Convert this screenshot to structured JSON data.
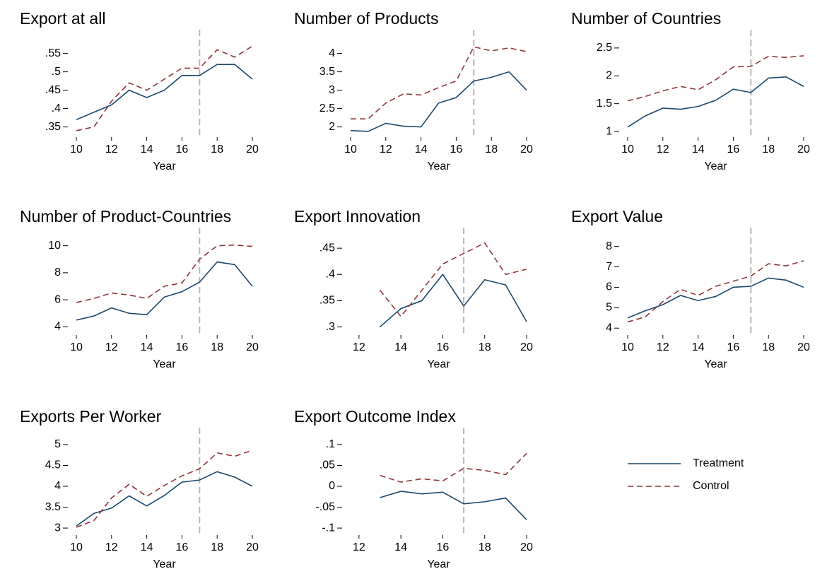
{
  "chart_data": [
    {
      "type": "line",
      "title": "Export at all",
      "xlabel": "Year",
      "x": [
        10,
        11,
        12,
        13,
        14,
        15,
        16,
        17,
        18,
        19,
        20
      ],
      "xlim": [
        10,
        20
      ],
      "xticks": [
        10,
        12,
        14,
        16,
        18,
        20
      ],
      "ylim": [
        0.33,
        0.58
      ],
      "yticks": [
        {
          "value": 0.35,
          "label": ".35"
        },
        {
          "value": 0.4,
          "label": ".4"
        },
        {
          "value": 0.45,
          "label": ".45"
        },
        {
          "value": 0.5,
          "label": ".5"
        },
        {
          "value": 0.55,
          "label": ".55"
        }
      ],
      "vline": 17,
      "series": [
        {
          "name": "Treatment",
          "color": "#1a476f",
          "dashed": false,
          "values": [
            0.37,
            0.39,
            0.41,
            0.45,
            0.43,
            0.45,
            0.49,
            0.49,
            0.52,
            0.52,
            0.48
          ]
        },
        {
          "name": "Control",
          "color": "#90353b",
          "dashed": true,
          "values": [
            0.34,
            0.35,
            0.42,
            0.47,
            0.45,
            0.48,
            0.51,
            0.51,
            0.56,
            0.54,
            0.57
          ]
        }
      ]
    },
    {
      "type": "line",
      "title": "Number of Products",
      "xlabel": "Year",
      "x": [
        10,
        11,
        12,
        13,
        14,
        15,
        16,
        17,
        18,
        19,
        20
      ],
      "xlim": [
        10,
        20
      ],
      "xticks": [
        10,
        12,
        14,
        16,
        18,
        20
      ],
      "ylim": [
        1.8,
        4.3
      ],
      "yticks": [
        2,
        2.5,
        3,
        3.5,
        4
      ],
      "vline": 17,
      "series": [
        {
          "name": "Treatment",
          "color": "#1a476f",
          "dashed": false,
          "values": [
            1.9,
            1.88,
            2.1,
            2.02,
            2.0,
            2.65,
            2.8,
            3.25,
            3.35,
            3.5,
            3.0
          ]
        },
        {
          "name": "Control",
          "color": "#90353b",
          "dashed": true,
          "values": [
            2.22,
            2.22,
            2.65,
            2.9,
            2.87,
            3.07,
            3.25,
            4.18,
            4.07,
            4.15,
            4.05
          ]
        }
      ]
    },
    {
      "type": "line",
      "title": "Number of Countries",
      "xlabel": "Year",
      "x": [
        10,
        11,
        12,
        13,
        14,
        15,
        16,
        17,
        18,
        19,
        20
      ],
      "xlim": [
        10,
        20
      ],
      "xticks": [
        10,
        12,
        14,
        16,
        18,
        20
      ],
      "ylim": [
        0.95,
        2.6
      ],
      "yticks": [
        1,
        1.5,
        2,
        2.5
      ],
      "vline": 17,
      "series": [
        {
          "name": "Treatment",
          "color": "#1a476f",
          "dashed": false,
          "values": [
            1.08,
            1.28,
            1.42,
            1.4,
            1.45,
            1.56,
            1.76,
            1.7,
            1.96,
            1.98,
            1.81
          ]
        },
        {
          "name": "Control",
          "color": "#90353b",
          "dashed": true,
          "values": [
            1.55,
            1.63,
            1.73,
            1.81,
            1.75,
            1.93,
            2.16,
            2.17,
            2.35,
            2.33,
            2.36
          ]
        }
      ]
    },
    {
      "type": "line",
      "title": "Number of Product-Countries",
      "xlabel": "Year",
      "x": [
        10,
        11,
        12,
        13,
        14,
        15,
        16,
        17,
        18,
        19,
        20
      ],
      "xlim": [
        10,
        20
      ],
      "xticks": [
        10,
        12,
        14,
        16,
        18,
        20
      ],
      "ylim": [
        3.6,
        10.4
      ],
      "yticks": [
        4,
        6,
        8,
        10
      ],
      "vline": 17,
      "series": [
        {
          "name": "Treatment",
          "color": "#1a476f",
          "dashed": false,
          "values": [
            4.5,
            4.8,
            5.4,
            5.0,
            4.9,
            6.2,
            6.6,
            7.3,
            8.8,
            8.6,
            7.0
          ]
        },
        {
          "name": "Control",
          "color": "#90353b",
          "dashed": true,
          "values": [
            5.8,
            6.1,
            6.5,
            6.35,
            6.1,
            7.0,
            7.25,
            9.0,
            10.0,
            10.05,
            9.95
          ]
        }
      ]
    },
    {
      "type": "line",
      "title": "Export Innovation",
      "xlabel": "Year",
      "x": [
        13,
        14,
        15,
        16,
        17,
        18,
        19,
        20
      ],
      "xlim": [
        11.6,
        20
      ],
      "xticks": [
        12,
        14,
        16,
        18,
        20
      ],
      "ylim": [
        0.29,
        0.465
      ],
      "yticks": [
        {
          "value": 0.3,
          "label": ".3"
        },
        {
          "value": 0.35,
          "label": ".35"
        },
        {
          "value": 0.4,
          "label": ".4"
        },
        {
          "value": 0.45,
          "label": ".45"
        }
      ],
      "vline": 17,
      "series": [
        {
          "name": "Treatment",
          "color": "#1a476f",
          "dashed": false,
          "values": [
            0.3,
            0.335,
            0.35,
            0.4,
            0.34,
            0.39,
            0.38,
            0.31
          ]
        },
        {
          "name": "Control",
          "color": "#90353b",
          "dashed": true,
          "values": [
            0.37,
            0.32,
            0.37,
            0.42,
            0.44,
            0.46,
            0.4,
            0.41
          ]
        }
      ]
    },
    {
      "type": "line",
      "title": "Export Value",
      "xlabel": "Year",
      "x": [
        10,
        11,
        12,
        13,
        14,
        15,
        16,
        17,
        18,
        19,
        20
      ],
      "xlim": [
        10,
        20
      ],
      "xticks": [
        10,
        12,
        14,
        16,
        18,
        20
      ],
      "ylim": [
        3.8,
        8.3
      ],
      "yticks": [
        4,
        5,
        6,
        7,
        8
      ],
      "vline": 17,
      "series": [
        {
          "name": "Treatment",
          "color": "#1a476f",
          "dashed": false,
          "values": [
            4.5,
            4.85,
            5.15,
            5.6,
            5.35,
            5.55,
            6.0,
            6.05,
            6.45,
            6.35,
            6.0
          ]
        },
        {
          "name": "Control",
          "color": "#90353b",
          "dashed": true,
          "values": [
            4.3,
            4.55,
            5.3,
            5.9,
            5.6,
            6.05,
            6.3,
            6.55,
            7.15,
            7.05,
            7.3
          ]
        }
      ]
    },
    {
      "type": "line",
      "title": "Exports Per Worker",
      "xlabel": "Year",
      "x": [
        10,
        11,
        12,
        13,
        14,
        15,
        16,
        17,
        18,
        19,
        20
      ],
      "xlim": [
        10,
        20
      ],
      "xticks": [
        10,
        12,
        14,
        16,
        18,
        20
      ],
      "ylim": [
        2.9,
        5.1
      ],
      "yticks": [
        3,
        3.5,
        4,
        4.5,
        5
      ],
      "vline": 17,
      "series": [
        {
          "name": "Treatment",
          "color": "#1a476f",
          "dashed": false,
          "values": [
            3.05,
            3.35,
            3.48,
            3.77,
            3.53,
            3.78,
            4.1,
            4.15,
            4.35,
            4.22,
            4.0
          ]
        },
        {
          "name": "Control",
          "color": "#90353b",
          "dashed": true,
          "values": [
            3.02,
            3.18,
            3.72,
            4.05,
            3.76,
            4.02,
            4.25,
            4.42,
            4.8,
            4.72,
            4.86
          ]
        }
      ]
    },
    {
      "type": "line",
      "title": "Export Outcome Index",
      "xlabel": "Year",
      "x": [
        13,
        14,
        15,
        16,
        17,
        18,
        19,
        20
      ],
      "xlim": [
        11.6,
        20
      ],
      "xticks": [
        12,
        14,
        16,
        18,
        20
      ],
      "ylim": [
        -0.11,
        0.11
      ],
      "yticks": [
        {
          "value": -0.1,
          "label": "-.1"
        },
        {
          "value": -0.05,
          "label": "-.05"
        },
        0,
        {
          "value": 0.05,
          "label": ".05"
        },
        {
          "value": 0.1,
          "label": ".1"
        }
      ],
      "vline": 17,
      "series": [
        {
          "name": "Treatment",
          "color": "#1a476f",
          "dashed": false,
          "values": [
            -0.027,
            -0.012,
            -0.018,
            -0.014,
            -0.042,
            -0.037,
            -0.028,
            -0.08
          ]
        },
        {
          "name": "Control",
          "color": "#90353b",
          "dashed": true,
          "values": [
            0.026,
            0.01,
            0.018,
            0.013,
            0.043,
            0.038,
            0.028,
            0.079
          ]
        }
      ]
    }
  ]
}
